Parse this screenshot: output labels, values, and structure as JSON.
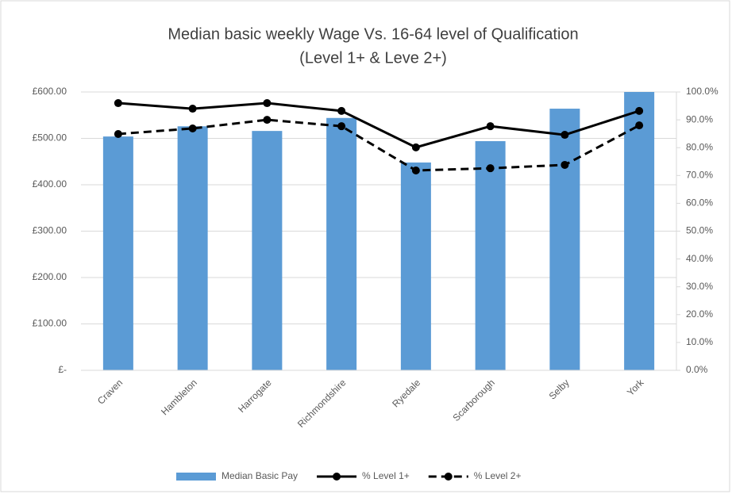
{
  "chart_data": {
    "type": "bar-line",
    "title": "Median basic weekly Wage Vs. 16-64 level of Qualification",
    "subtitle": "(Level 1+ & Leve 2+)",
    "categories": [
      "Craven",
      "Hambleton",
      "Harrogate",
      "Richmondshire",
      "Ryedale",
      "Scarborough",
      "Selby",
      "York"
    ],
    "series": [
      {
        "name": "Median Basic Pay",
        "type": "bar",
        "color": "#5b9bd5",
        "values": [
          504,
          526,
          516,
          544,
          448,
          494,
          564,
          600
        ]
      },
      {
        "name": "% Level 1+",
        "type": "line",
        "color": "#000000",
        "dash": false,
        "axis": "y2",
        "values": [
          96.0,
          94.0,
          96.0,
          93.2,
          80.1,
          87.7,
          84.6,
          93.2
        ]
      },
      {
        "name": "% Level 2+",
        "type": "line",
        "color": "#000000",
        "dash": true,
        "axis": "y2",
        "values": [
          84.9,
          86.9,
          90.0,
          87.7,
          71.8,
          72.6,
          73.8,
          88.0
        ]
      }
    ],
    "ylim": [
      0,
      600
    ],
    "yticks": [
      {
        "value": 0,
        "label": "£-"
      },
      {
        "value": 100,
        "label": "£100.00"
      },
      {
        "value": 200,
        "label": "£200.00"
      },
      {
        "value": 300,
        "label": "£300.00"
      },
      {
        "value": 400,
        "label": "£400.00"
      },
      {
        "value": 500,
        "label": "£500.00"
      },
      {
        "value": 600,
        "label": "£600.00"
      }
    ],
    "y2lim": [
      0,
      100
    ],
    "y2ticks": [
      {
        "value": 0,
        "label": "0.0%"
      },
      {
        "value": 10,
        "label": "10.0%"
      },
      {
        "value": 20,
        "label": "20.0%"
      },
      {
        "value": 30,
        "label": "30.0%"
      },
      {
        "value": 40,
        "label": "40.0%"
      },
      {
        "value": 50,
        "label": "50.0%"
      },
      {
        "value": 60,
        "label": "60.0%"
      },
      {
        "value": 70,
        "label": "70.0%"
      },
      {
        "value": 80,
        "label": "80.0%"
      },
      {
        "value": 90,
        "label": "90.0%"
      },
      {
        "value": 100,
        "label": "100.0%"
      }
    ],
    "grid": true,
    "legend": "bottom"
  }
}
